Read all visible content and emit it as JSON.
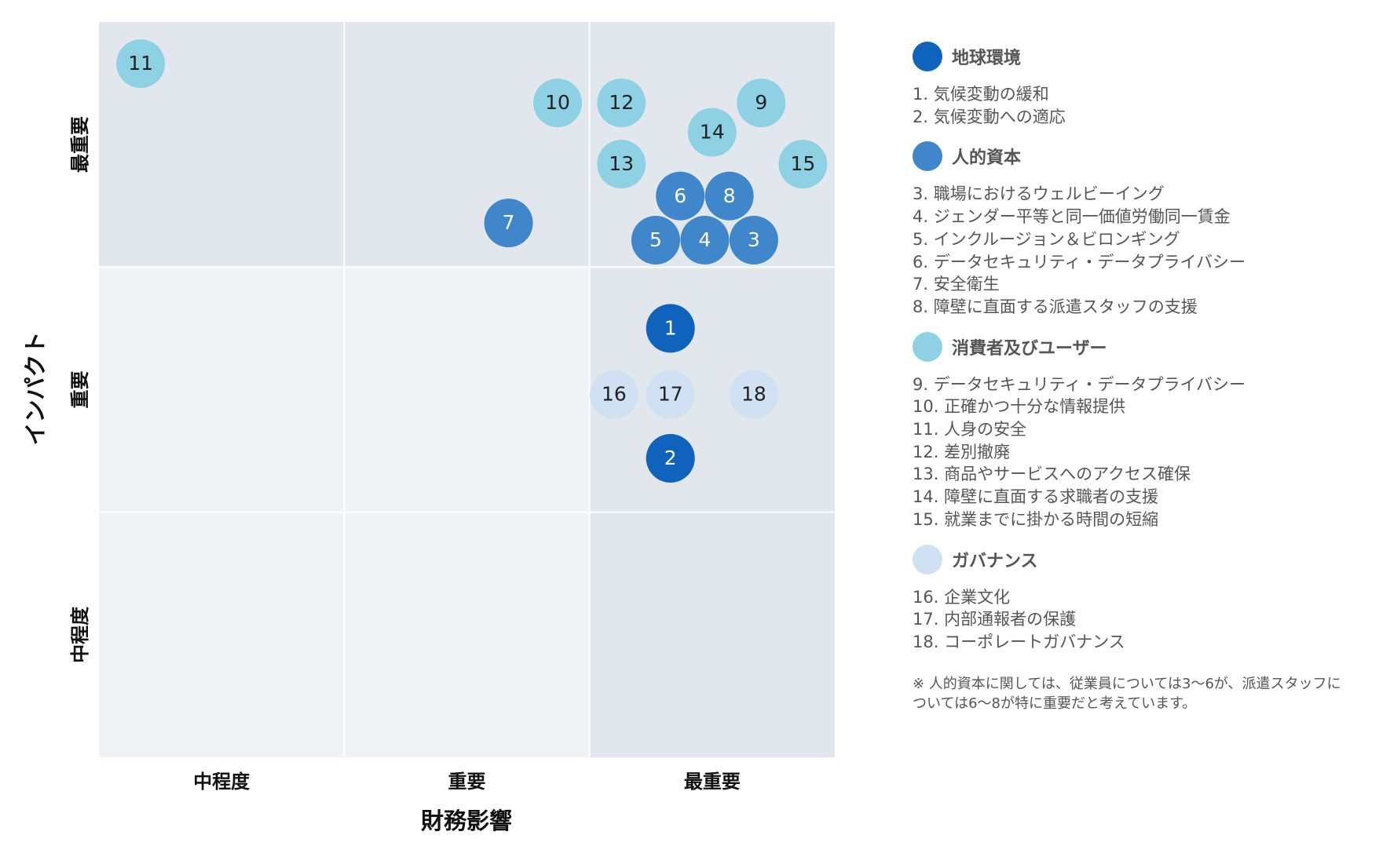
{
  "chart_data": {
    "type": "scatter",
    "xlabel": "財務影響",
    "ylabel": "インパクト",
    "xlim": [
      0,
      3
    ],
    "ylim": [
      0,
      3
    ],
    "xticks": [
      {
        "value": 0.5,
        "label": "中程度"
      },
      {
        "value": 1.5,
        "label": "重要"
      },
      {
        "value": 2.5,
        "label": "最重要"
      }
    ],
    "yticks": [
      {
        "value": 0.5,
        "label": "中程度"
      },
      {
        "value": 1.5,
        "label": "重要"
      },
      {
        "value": 2.5,
        "label": "最重要"
      }
    ],
    "series": [
      {
        "name": "地球環境",
        "color": "#0f63bd",
        "x": [
          2.33,
          2.33
        ],
        "values": [
          1.75,
          1.22
        ],
        "labels": [
          "1",
          "2"
        ],
        "items": [
          "1. 気候変動の緩和",
          "2. 気候変動への適応"
        ]
      },
      {
        "name": "人的資本",
        "color": "#3f86cb",
        "x": [
          2.67,
          2.47,
          2.27,
          2.37,
          1.67,
          2.57
        ],
        "values": [
          2.11,
          2.11,
          2.11,
          2.29,
          2.18,
          2.29
        ],
        "labels": [
          "3",
          "4",
          "5",
          "6",
          "7",
          "8"
        ],
        "items": [
          "3. 職場におけるウェルビーイング",
          "4. ジェンダー平等と同一価値労働同一賃金",
          "5. インクルージョン＆ビロンギング",
          "6. データセキュリティ・データプライバシー",
          "7. 安全衛生",
          "8. 障壁に直面する派遣スタッフの支援"
        ]
      },
      {
        "name": "消費者及びユーザー",
        "color": "#8ed0e4",
        "x": [
          2.7,
          1.87,
          0.17,
          2.13,
          2.13,
          2.5,
          2.87
        ],
        "values": [
          2.67,
          2.67,
          2.83,
          2.67,
          2.42,
          2.55,
          2.42
        ],
        "labels": [
          "9",
          "10",
          "11",
          "12",
          "13",
          "14",
          "15"
        ],
        "items": [
          "9. データセキュリティ・データプライバシー",
          "10. 正確かつ十分な情報提供",
          "11. 人身の安全",
          "12. 差別撤廃",
          "13. 商品やサービスへのアクセス確保",
          "14. 障壁に直面する求職者の支援",
          "15. 就業までに掛かる時間の短縮"
        ]
      },
      {
        "name": "ガバナンス",
        "color": "#cfe1f2",
        "x": [
          2.1,
          2.33,
          2.67
        ],
        "values": [
          1.48,
          1.48,
          1.48
        ],
        "labels": [
          "16",
          "17",
          "18"
        ],
        "items": [
          "16. 企業文化",
          "17. 内部通報者の保護",
          "18. コーポレートガバナンス"
        ]
      }
    ],
    "note": "※ 人的資本に関しては、従業員については3〜6が、派遣スタッフについては6〜8が特に重要だと考えています。"
  }
}
